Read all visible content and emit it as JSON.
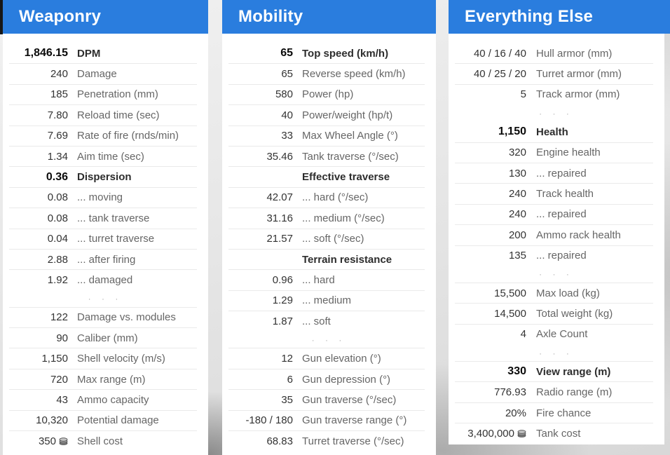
{
  "theme": {
    "header_color": "#2a7dde",
    "panel_color": "#ffffff",
    "value_color": "#333333",
    "label_color": "#666666",
    "divider_color": "#eaeaea"
  },
  "panels": [
    {
      "title": "Weaponry",
      "rows": [
        {
          "value": "1,846.15",
          "label": "DPM",
          "style": "bold"
        },
        {
          "value": "240",
          "label": "Damage"
        },
        {
          "value": "185",
          "label": "Penetration (mm)"
        },
        {
          "value": "7.80",
          "label": "Reload time (sec)"
        },
        {
          "value": "7.69",
          "label": "Rate of fire (rnds/min)"
        },
        {
          "value": "1.34",
          "label": "Aim time (sec)"
        },
        {
          "value": "0.36",
          "label": "Dispersion",
          "style": "bold"
        },
        {
          "value": "0.08",
          "label": "... moving"
        },
        {
          "value": "0.08",
          "label": "... tank traverse"
        },
        {
          "value": "0.04",
          "label": "... turret traverse"
        },
        {
          "value": "2.88",
          "label": "... after firing"
        },
        {
          "value": "1.92",
          "label": "... damaged"
        },
        {
          "style": "dots",
          "glyph": "· · ·"
        },
        {
          "value": "122",
          "label": "Damage vs. modules"
        },
        {
          "value": "90",
          "label": "Caliber (mm)"
        },
        {
          "value": "1,150",
          "label": "Shell velocity (m/s)"
        },
        {
          "value": "720",
          "label": "Max range (m)"
        },
        {
          "value": "43",
          "label": "Ammo capacity"
        },
        {
          "value": "10,320",
          "label": "Potential damage"
        },
        {
          "value": "350",
          "label": "Shell cost",
          "icon": "credits-coin-icon"
        }
      ]
    },
    {
      "title": "Mobility",
      "rows": [
        {
          "value": "65",
          "label": "Top speed (km/h)",
          "style": "bold"
        },
        {
          "value": "65",
          "label": "Reverse speed (km/h)"
        },
        {
          "value": "580",
          "label": "Power (hp)"
        },
        {
          "value": "40",
          "label": "Power/weight (hp/t)"
        },
        {
          "value": "33",
          "label": "Max Wheel Angle (°)"
        },
        {
          "value": "35.46",
          "label": "Tank traverse (°/sec)"
        },
        {
          "value": "",
          "label": "Effective traverse",
          "style": "section"
        },
        {
          "value": "42.07",
          "label": "... hard (°/sec)"
        },
        {
          "value": "31.16",
          "label": "... medium (°/sec)"
        },
        {
          "value": "21.57",
          "label": "... soft (°/sec)"
        },
        {
          "value": "",
          "label": "Terrain resistance",
          "style": "section"
        },
        {
          "value": "0.96",
          "label": "... hard"
        },
        {
          "value": "1.29",
          "label": "... medium"
        },
        {
          "value": "1.87",
          "label": "... soft"
        },
        {
          "style": "dots",
          "glyph": "· · ·"
        },
        {
          "value": "12",
          "label": "Gun elevation (°)"
        },
        {
          "value": "6",
          "label": "Gun depression (°)"
        },
        {
          "value": "35",
          "label": "Gun traverse (°/sec)"
        },
        {
          "value": "-180 / 180",
          "label": "Gun traverse range (°)"
        },
        {
          "value": "68.83",
          "label": "Turret traverse (°/sec)"
        }
      ]
    },
    {
      "title": "Everything Else",
      "rows": [
        {
          "value": "40 / 16 / 40",
          "label": "Hull armor (mm)"
        },
        {
          "value": "40 / 25 / 20",
          "label": "Turret armor (mm)"
        },
        {
          "value": "5",
          "label": "Track armor (mm)"
        },
        {
          "style": "dots",
          "glyph": "· · ·",
          "noline": true
        },
        {
          "value": "1,150",
          "label": "Health",
          "style": "bold"
        },
        {
          "value": "320",
          "label": "Engine health"
        },
        {
          "value": "130",
          "label": "... repaired"
        },
        {
          "value": "240",
          "label": "Track health"
        },
        {
          "value": "240",
          "label": "... repaired"
        },
        {
          "value": "200",
          "label": "Ammo rack health"
        },
        {
          "value": "135",
          "label": "... repaired"
        },
        {
          "style": "dots",
          "glyph": "· · ·"
        },
        {
          "value": "15,500",
          "label": "Max load (kg)"
        },
        {
          "value": "14,500",
          "label": "Total weight (kg)"
        },
        {
          "value": "4",
          "label": "Axle Count"
        },
        {
          "style": "dots",
          "glyph": "· · ·"
        },
        {
          "value": "330",
          "label": "View range (m)",
          "style": "bold"
        },
        {
          "value": "776.93",
          "label": "Radio range (m)"
        },
        {
          "value": "20%",
          "label": "Fire chance"
        },
        {
          "value": "3,400,000",
          "label": "Tank cost",
          "icon": "credits-coin-icon"
        }
      ]
    }
  ]
}
